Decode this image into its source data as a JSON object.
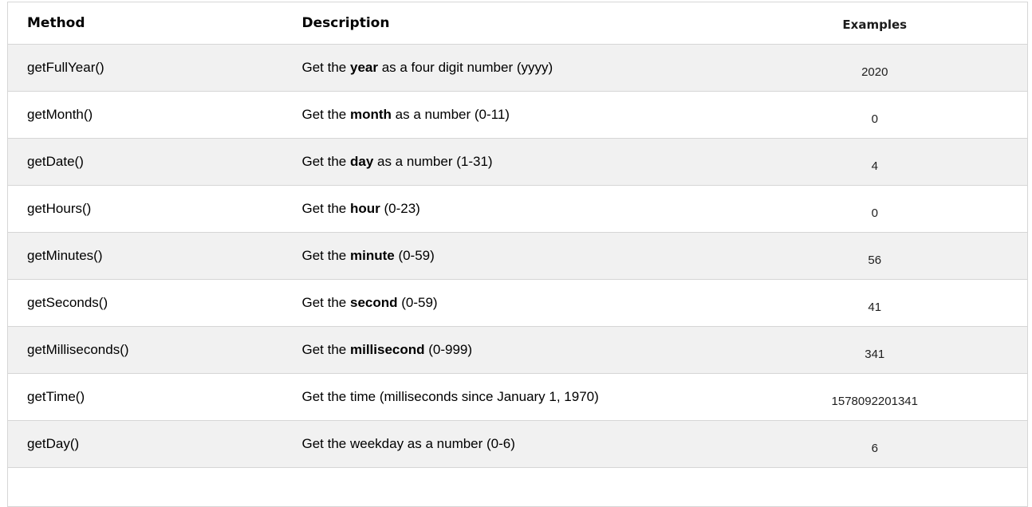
{
  "table": {
    "columns": [
      "Method",
      "Description",
      "Examples"
    ],
    "rows": [
      {
        "method": "getFullYear()",
        "desc_prefix": "Get the ",
        "desc_bold": "year",
        "desc_suffix": " as a four digit number (yyyy)",
        "example": "2020"
      },
      {
        "method": "getMonth()",
        "desc_prefix": "Get the ",
        "desc_bold": "month",
        "desc_suffix": " as a number (0-11)",
        "example": "0"
      },
      {
        "method": "getDate()",
        "desc_prefix": "Get the ",
        "desc_bold": "day",
        "desc_suffix": " as a number (1-31)",
        "example": "4"
      },
      {
        "method": "getHours()",
        "desc_prefix": "Get the ",
        "desc_bold": "hour",
        "desc_suffix": " (0-23)",
        "example": "0"
      },
      {
        "method": "getMinutes()",
        "desc_prefix": "Get the ",
        "desc_bold": "minute",
        "desc_suffix": " (0-59)",
        "example": "56"
      },
      {
        "method": "getSeconds()",
        "desc_prefix": "Get the ",
        "desc_bold": "second",
        "desc_suffix": " (0-59)",
        "example": "41"
      },
      {
        "method": "getMilliseconds()",
        "desc_prefix": "Get the ",
        "desc_bold": "millisecond",
        "desc_suffix": " (0-999)",
        "example": "341"
      },
      {
        "method": "getTime()",
        "desc_prefix": "Get the time (milliseconds since January 1, 1970)",
        "desc_bold": "",
        "desc_suffix": "",
        "example": "1578092201341"
      },
      {
        "method": "getDay()",
        "desc_prefix": "Get the weekday as a number (0-6)",
        "desc_bold": "",
        "desc_suffix": "",
        "example": "6"
      }
    ]
  },
  "colors": {
    "row_stripe": "#f1f1f1",
    "row_plain": "#ffffff",
    "border": "#d6d6d6",
    "text": "#000000"
  }
}
